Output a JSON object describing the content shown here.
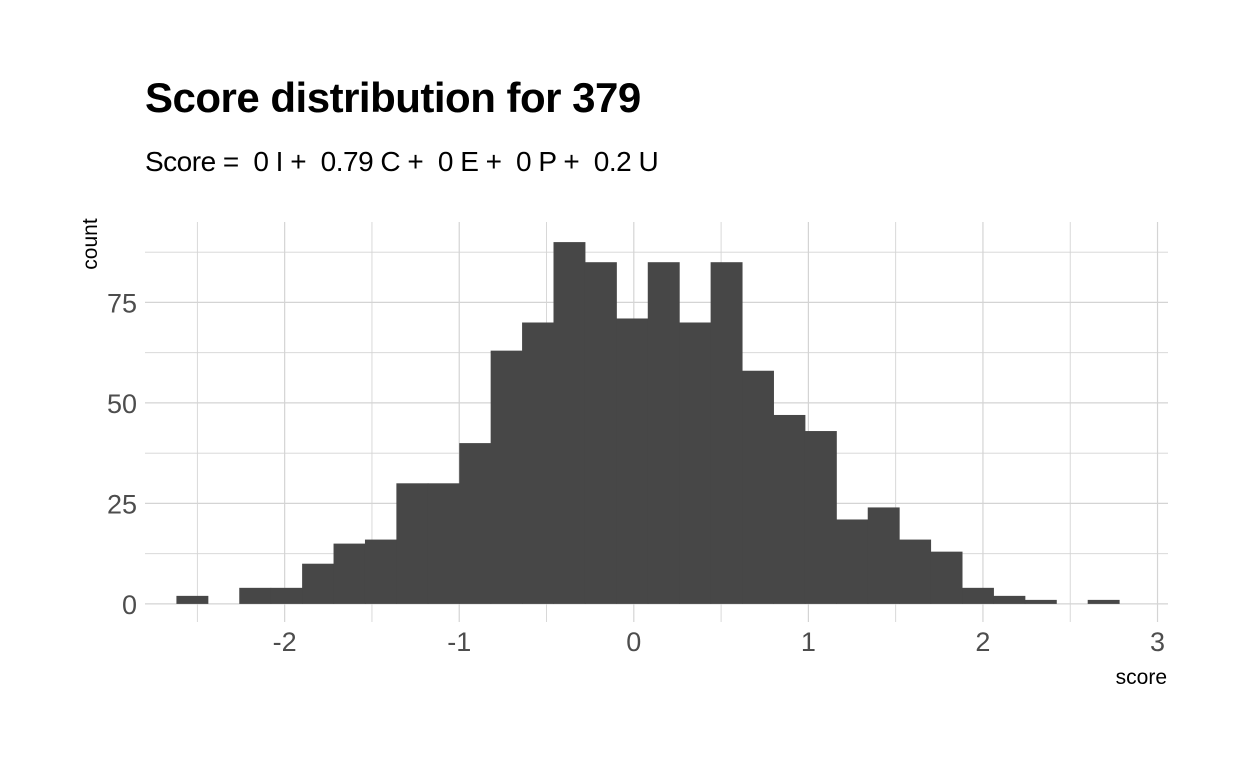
{
  "chart_data": {
    "type": "bar",
    "title": "Score distribution for 379",
    "subtitle": "Score =  0 I +  0.79 C +  0 E +  0 P +  0.2 U",
    "xlabel": "score",
    "ylabel": "count",
    "xlim": [
      -2.8,
      3.06
    ],
    "ylim": [
      -4.5,
      95
    ],
    "x_ticks": [
      -2,
      -1,
      0,
      1,
      2,
      3
    ],
    "x_tick_labels": [
      "-2",
      "-1",
      "0",
      "1",
      "2",
      "3"
    ],
    "y_ticks": [
      0,
      25,
      50,
      75
    ],
    "y_tick_labels": [
      "0",
      "25",
      "50",
      "75"
    ],
    "grid": true,
    "bin_width": 0.18,
    "bin_starts": [
      -2.62,
      -2.44,
      -2.26,
      -2.08,
      -1.9,
      -1.72,
      -1.54,
      -1.36,
      -1.18,
      -1.0,
      -0.82,
      -0.64,
      -0.46,
      -0.28,
      -0.1,
      0.08,
      0.26,
      0.44,
      0.62,
      0.8,
      0.98,
      1.16,
      1.34,
      1.52,
      1.7,
      1.88,
      2.06,
      2.24,
      2.42,
      2.6
    ],
    "values": [
      2,
      0,
      4,
      4,
      10,
      15,
      16,
      30,
      30,
      40,
      63,
      70,
      90,
      85,
      71,
      85,
      70,
      85,
      58,
      47,
      43,
      21,
      24,
      16,
      13,
      4,
      2,
      1,
      0,
      1
    ],
    "bar_color": "#474747",
    "grid_color": "#d4d4d4"
  }
}
